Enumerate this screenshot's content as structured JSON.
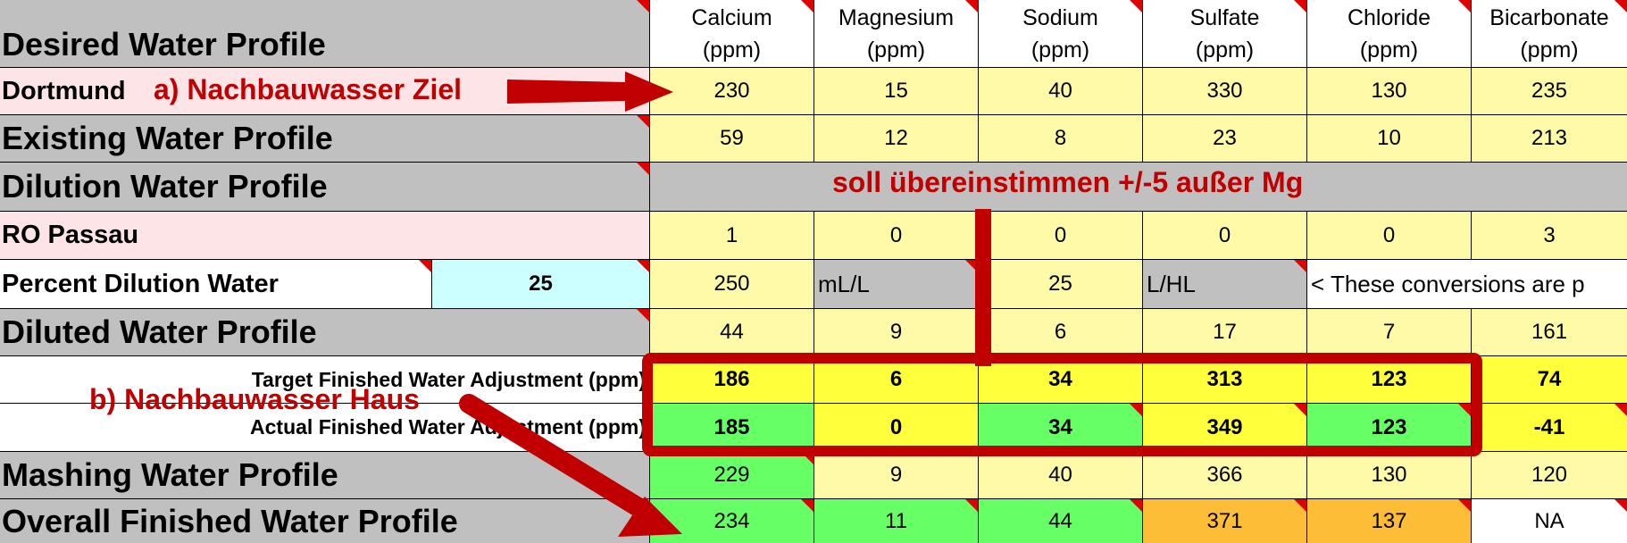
{
  "header": {
    "columns": [
      {
        "name": "Calcium",
        "unit": "(ppm)"
      },
      {
        "name": "Magnesium",
        "unit": "(ppm)"
      },
      {
        "name": "Sodium",
        "unit": "(ppm)"
      },
      {
        "name": "Sulfate",
        "unit": "(ppm)"
      },
      {
        "name": "Chloride",
        "unit": "(ppm)"
      },
      {
        "name": "Bicarbonate",
        "unit": "(ppm)"
      }
    ]
  },
  "rows": {
    "desired": {
      "label": "Desired Water Profile"
    },
    "dortmund": {
      "label": "Dortmund",
      "values": [
        "230",
        "15",
        "40",
        "330",
        "130",
        "235"
      ]
    },
    "existing": {
      "label": "Existing Water Profile",
      "values": [
        "59",
        "12",
        "8",
        "23",
        "10",
        "213"
      ]
    },
    "dilution": {
      "label": "Dilution Water Profile"
    },
    "ro": {
      "label": "RO Passau",
      "values": [
        "1",
        "0",
        "0",
        "0",
        "0",
        "3"
      ]
    },
    "percent": {
      "label": "Percent Dilution Water",
      "input_value": "25",
      "values": [
        "250",
        "mL/L",
        "25",
        "L/HL",
        "< These conversions are p"
      ]
    },
    "diluted": {
      "label": "Diluted Water Profile",
      "values": [
        "44",
        "9",
        "6",
        "17",
        "7",
        "161"
      ]
    },
    "target": {
      "label": "Target Finished Water Adjustment (ppm)",
      "values": [
        "186",
        "6",
        "34",
        "313",
        "123",
        "74"
      ]
    },
    "actual": {
      "label": "Actual Finished Water Adjustment (ppm)",
      "values": [
        "185",
        "0",
        "34",
        "349",
        "123",
        "-41"
      ]
    },
    "mashing": {
      "label": "Mashing Water Profile",
      "values": [
        "229",
        "9",
        "40",
        "366",
        "130",
        "120"
      ]
    },
    "overall": {
      "label": "Overall Finished Water Profile",
      "values": [
        "234",
        "11",
        "44",
        "371",
        "137",
        "NA"
      ]
    }
  },
  "annotations": {
    "a": "a) Nachbauwasser Ziel",
    "b": "b) Nachbauwasser Haus",
    "note": "soll übereinstimmen +/-5  außer Mg"
  },
  "colors": {
    "header_gray": "#c0c0c0",
    "light_yellow": "#fefaa7",
    "yellow": "#ffff3c",
    "green": "#66ff66",
    "orange": "#fdbd36",
    "pink": "#fde4e6",
    "cyan": "#ccffff",
    "annotation_red": "#c00000",
    "comment_marker": "#e00000"
  }
}
